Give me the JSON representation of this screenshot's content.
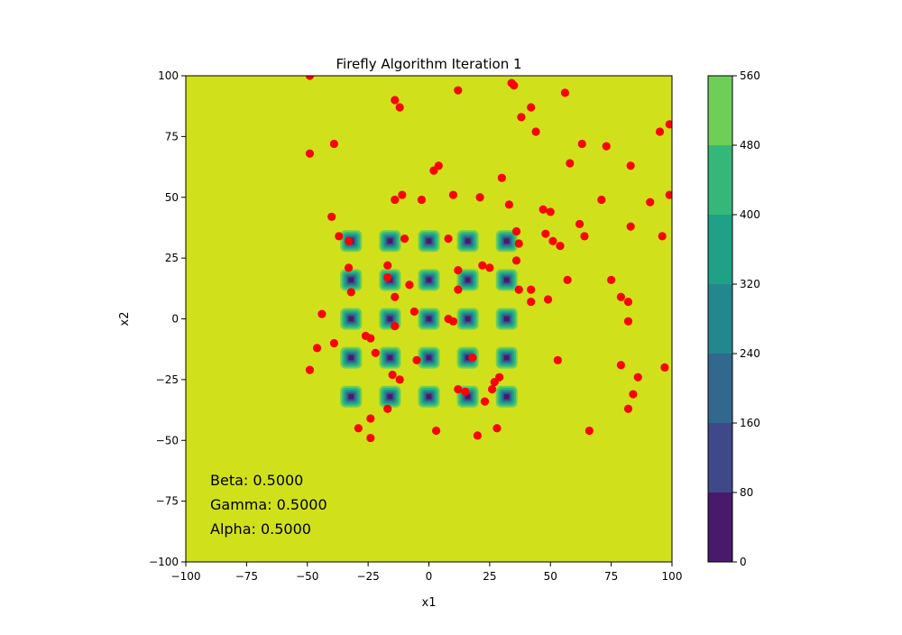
{
  "chart_data": {
    "type": "scatter",
    "title": "Firefly Algorithm Iteration 1",
    "xlabel": "x1",
    "ylabel": "x2",
    "xlim": [
      -100,
      100
    ],
    "ylim": [
      -100,
      100
    ],
    "x_ticks": [
      -100,
      -75,
      -50,
      -25,
      0,
      25,
      50,
      75,
      100
    ],
    "y_ticks": [
      -100,
      -75,
      -50,
      -25,
      0,
      25,
      50,
      75,
      100
    ],
    "grid": false,
    "background_color": "#d0e11c",
    "point_color": "#ff0000",
    "contour": {
      "description_levels": [
        0,
        80,
        160,
        240,
        320,
        400,
        480,
        560
      ],
      "level_colors": [
        "#481a6c",
        "#3f4889",
        "#31688e",
        "#23888e",
        "#1fa187",
        "#35b779",
        "#6ece58",
        "#d0e11c"
      ],
      "well_centers_x": [
        -32,
        -16,
        0,
        16,
        32
      ],
      "well_centers_y": [
        -32,
        -16,
        0,
        16,
        32
      ]
    },
    "colorbar": {
      "ticks": [
        0,
        80,
        160,
        240,
        320,
        400,
        480,
        560
      ],
      "ticks_label": [
        "0",
        "80",
        "160",
        "240",
        "320",
        "400",
        "480",
        "560"
      ]
    },
    "annotations": {
      "beta": "Beta: 0.5000",
      "gamma": "Gamma: 0.5000",
      "alpha": "Alpha: 0.5000"
    },
    "points": [
      [
        -49,
        100
      ],
      [
        -49,
        68
      ],
      [
        -39,
        72
      ],
      [
        -40,
        42
      ],
      [
        -37,
        34
      ],
      [
        -33,
        21
      ],
      [
        -32,
        11
      ],
      [
        -33,
        32
      ],
      [
        -44,
        2
      ],
      [
        -46,
        -12
      ],
      [
        -39,
        -10
      ],
      [
        -49,
        -21
      ],
      [
        -29,
        -45
      ],
      [
        -24,
        -49
      ],
      [
        -24,
        -41
      ],
      [
        -26,
        -7
      ],
      [
        -24,
        -8
      ],
      [
        -22,
        -14
      ],
      [
        -17,
        -37
      ],
      [
        -17,
        22
      ],
      [
        -17,
        17
      ],
      [
        -14,
        9
      ],
      [
        -14,
        -3
      ],
      [
        -15,
        -23
      ],
      [
        -12,
        -25
      ],
      [
        -14,
        49
      ],
      [
        -11,
        51
      ],
      [
        -14,
        90
      ],
      [
        -12,
        87
      ],
      [
        -10,
        33
      ],
      [
        -8,
        14
      ],
      [
        -6,
        3
      ],
      [
        -5,
        -17
      ],
      [
        -3,
        49
      ],
      [
        2,
        61
      ],
      [
        4,
        63
      ],
      [
        3,
        -46
      ],
      [
        8,
        33
      ],
      [
        10,
        51
      ],
      [
        8,
        0
      ],
      [
        10,
        -1
      ],
      [
        12,
        94
      ],
      [
        12,
        12
      ],
      [
        12,
        20
      ],
      [
        12,
        -29
      ],
      [
        15,
        -30
      ],
      [
        18,
        -16
      ],
      [
        20,
        -48
      ],
      [
        21,
        50
      ],
      [
        22,
        22
      ],
      [
        23,
        -34
      ],
      [
        25,
        21
      ],
      [
        26,
        -29
      ],
      [
        27,
        -26
      ],
      [
        28,
        -45
      ],
      [
        29,
        -24
      ],
      [
        30,
        58
      ],
      [
        34,
        97
      ],
      [
        35,
        96
      ],
      [
        33,
        47
      ],
      [
        36,
        36
      ],
      [
        36,
        24
      ],
      [
        37,
        31
      ],
      [
        37,
        12
      ],
      [
        38,
        83
      ],
      [
        42,
        87
      ],
      [
        44,
        77
      ],
      [
        42,
        12
      ],
      [
        42,
        7
      ],
      [
        47,
        45
      ],
      [
        48,
        35
      ],
      [
        49,
        8
      ],
      [
        50,
        44
      ],
      [
        51,
        32
      ],
      [
        54,
        30
      ],
      [
        56,
        93
      ],
      [
        58,
        64
      ],
      [
        53,
        -17
      ],
      [
        57,
        16
      ],
      [
        62,
        39
      ],
      [
        63,
        72
      ],
      [
        64,
        34
      ],
      [
        66,
        -46
      ],
      [
        71,
        49
      ],
      [
        73,
        71
      ],
      [
        75,
        16
      ],
      [
        79,
        9
      ],
      [
        79,
        -19
      ],
      [
        82,
        7
      ],
      [
        82,
        -1
      ],
      [
        82,
        -37
      ],
      [
        83,
        63
      ],
      [
        83,
        38
      ],
      [
        84,
        -31
      ],
      [
        86,
        -24
      ],
      [
        91,
        48
      ],
      [
        95,
        77
      ],
      [
        96,
        34
      ],
      [
        97,
        -20
      ],
      [
        99,
        80
      ],
      [
        99,
        51
      ]
    ]
  }
}
